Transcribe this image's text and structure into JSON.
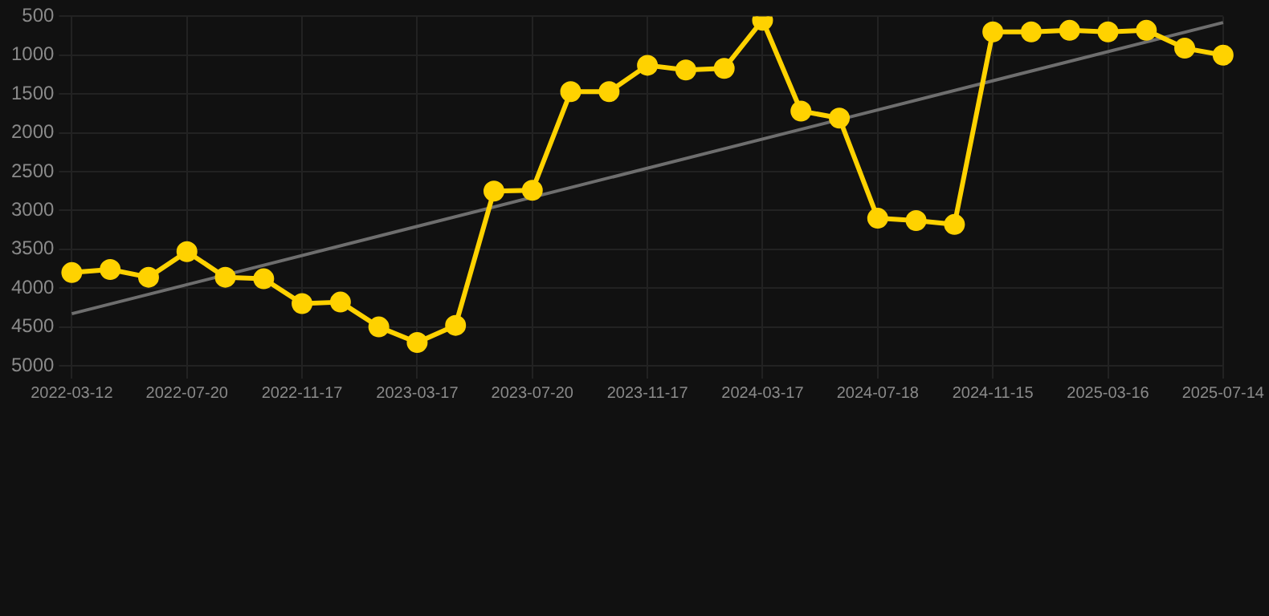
{
  "chart_data": {
    "type": "line",
    "categories": [
      "2022-03-12",
      null,
      null,
      "2022-07-20",
      null,
      null,
      "2022-11-17",
      null,
      null,
      "2023-03-17",
      null,
      null,
      "2023-07-20",
      null,
      null,
      "2023-11-17",
      null,
      null,
      "2024-03-17",
      null,
      null,
      "2024-07-18",
      null,
      null,
      "2024-11-15",
      null,
      null,
      "2025-03-16",
      null,
      null,
      "2025-07-14"
    ],
    "series": [
      {
        "color": "#ffd200",
        "marker": "circle",
        "values": [
          3800,
          3760,
          3860,
          3530,
          3860,
          3880,
          4200,
          4180,
          4500,
          4700,
          4480,
          2750,
          2740,
          1470,
          1470,
          1130,
          1190,
          1170,
          550,
          1720,
          1810,
          3100,
          3130,
          3180,
          700,
          700,
          680,
          700,
          680,
          910,
          1000
        ]
      },
      {
        "color": "#6e6e6e",
        "marker": "none",
        "values": [
          4330,
          null,
          null,
          null,
          null,
          null,
          null,
          null,
          null,
          null,
          null,
          null,
          null,
          null,
          null,
          null,
          null,
          null,
          null,
          null,
          null,
          null,
          null,
          null,
          null,
          null,
          null,
          null,
          null,
          null,
          580
        ]
      }
    ],
    "ylim": [
      5000,
      500
    ],
    "yticks": [
      500,
      1000,
      1500,
      2000,
      2500,
      3000,
      3500,
      4000,
      4500,
      5000
    ],
    "grid": true,
    "legend": false
  }
}
